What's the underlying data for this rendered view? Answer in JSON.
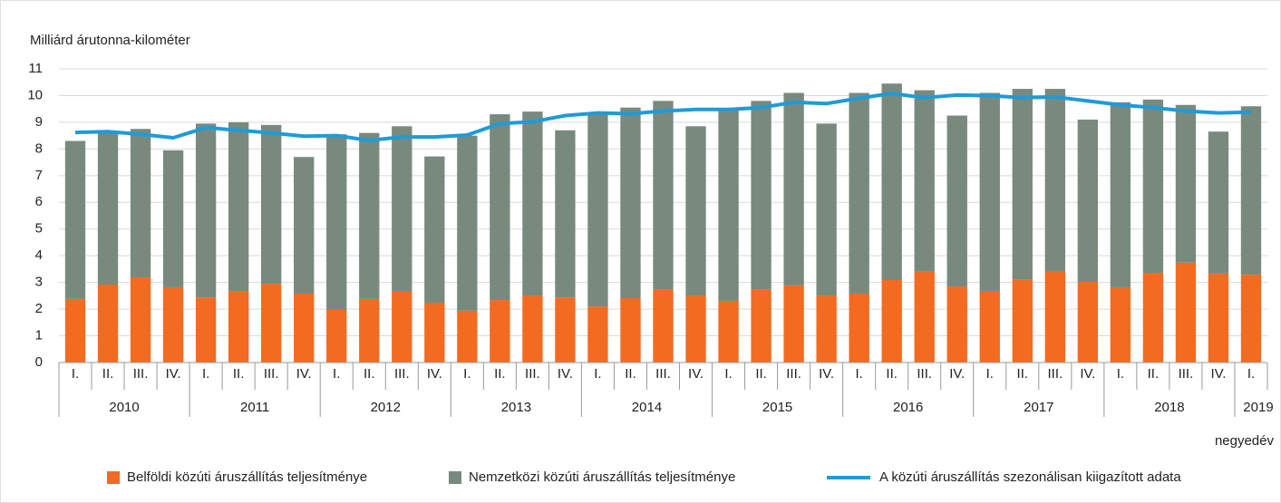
{
  "chart_data": {
    "type": "bar",
    "stacked": true,
    "y_axis_label": "Milliárd árutonna-kilométer",
    "x_axis_label": "negyedév",
    "categories": [
      "I.",
      "II.",
      "III.",
      "IV.",
      "I.",
      "II.",
      "III.",
      "IV.",
      "I.",
      "II.",
      "III.",
      "IV.",
      "I.",
      "II.",
      "III.",
      "IV.",
      "I.",
      "II.",
      "III.",
      "IV.",
      "I.",
      "II.",
      "III.",
      "IV.",
      "I.",
      "II.",
      "III.",
      "IV.",
      "I.",
      "II.",
      "III.",
      "IV.",
      "I.",
      "II.",
      "III.",
      "IV.",
      "I."
    ],
    "years": [
      "2010",
      "2011",
      "2012",
      "2013",
      "2014",
      "2015",
      "2016",
      "2017",
      "2018",
      "2019"
    ],
    "series": [
      {
        "name": "Belföldi közúti áruszállítás teljesítménye",
        "color": "#f26b21",
        "type": "bar",
        "values": [
          2.38,
          2.92,
          3.19,
          2.82,
          2.44,
          2.68,
          2.95,
          2.58,
          1.97,
          2.38,
          2.65,
          2.24,
          1.94,
          2.34,
          2.51,
          2.44,
          2.1,
          2.41,
          2.72,
          2.51,
          2.31,
          2.72,
          2.89,
          2.51,
          2.58,
          3.09,
          3.4,
          2.85,
          2.65,
          3.12,
          3.43,
          3.02,
          2.82,
          3.36,
          3.74,
          3.33,
          3.29
        ]
      },
      {
        "name": "Nemzetközi  közúti áruszállítás teljesítménye",
        "color": "#788a7e",
        "type": "bar",
        "values": [
          5.92,
          5.73,
          5.56,
          5.13,
          6.51,
          6.32,
          5.95,
          5.12,
          6.58,
          6.22,
          6.2,
          5.48,
          6.56,
          6.96,
          6.89,
          6.26,
          7.25,
          7.14,
          7.08,
          6.34,
          7.19,
          7.08,
          7.21,
          6.44,
          7.52,
          7.36,
          6.8,
          6.4,
          7.45,
          7.13,
          6.82,
          6.08,
          6.93,
          6.49,
          5.91,
          5.32,
          6.31
        ]
      },
      {
        "name": "A közúti áruszállítás szezonálisan kiigazított adata",
        "color": "#1f9bd7",
        "type": "line",
        "values": [
          8.62,
          8.65,
          8.55,
          8.42,
          8.8,
          8.7,
          8.6,
          8.48,
          8.5,
          8.32,
          8.45,
          8.45,
          8.52,
          8.95,
          9.02,
          9.25,
          9.35,
          9.32,
          9.42,
          9.48,
          9.48,
          9.55,
          9.75,
          9.7,
          9.9,
          10.08,
          9.92,
          10.02,
          10.0,
          9.92,
          9.95,
          9.8,
          9.65,
          9.55,
          9.42,
          9.35,
          9.38
        ]
      }
    ],
    "ylim": [
      0,
      11
    ],
    "yticks": [
      0,
      1,
      2,
      3,
      4,
      5,
      6,
      7,
      8,
      9,
      10,
      11
    ],
    "grid": true,
    "legend": "bottom"
  }
}
